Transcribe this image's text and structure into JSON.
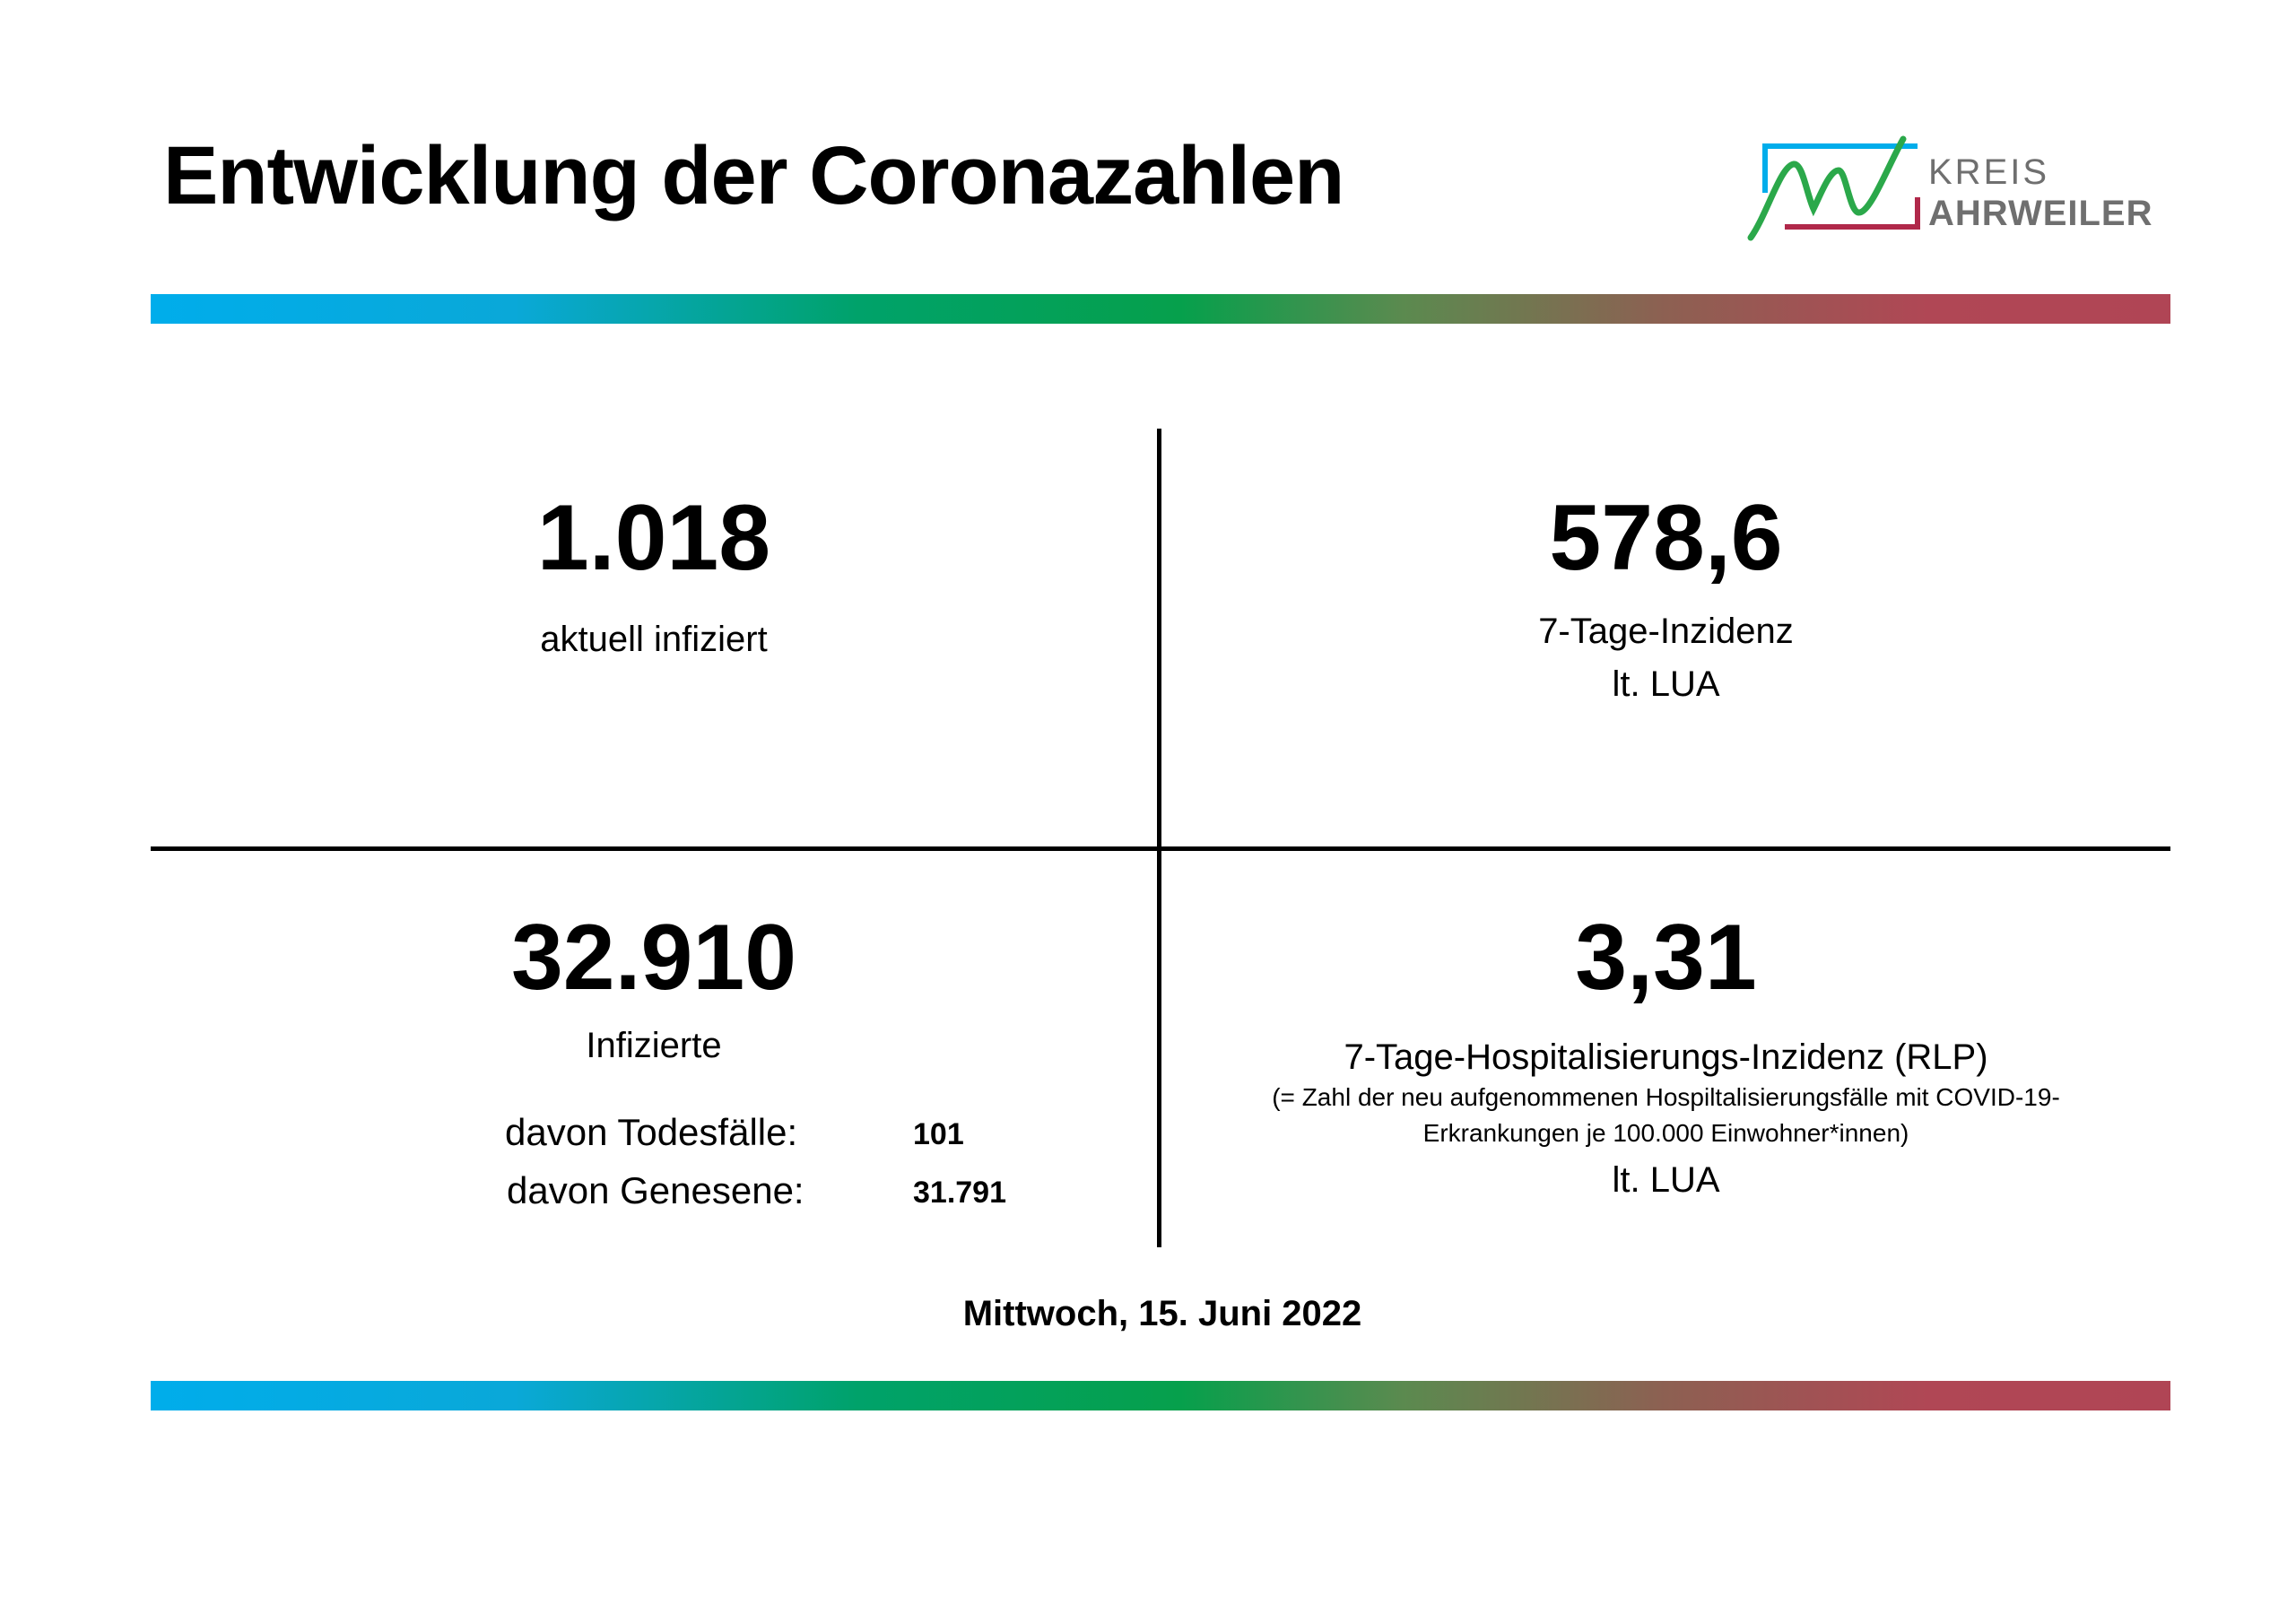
{
  "header": {
    "title": "Entwicklung der Coronazahlen",
    "logo": {
      "line1": "KREIS",
      "line2": "AHRWEILER",
      "colors": {
        "blue": "#00adeb",
        "green": "#2ba84a",
        "red": "#b0284a",
        "text": "#6f6f6f"
      }
    }
  },
  "colors": {
    "gradient": [
      "#00adeb",
      "#06a04c",
      "#b04555"
    ]
  },
  "current_infected": {
    "value": "1.018",
    "label": "aktuell infiziert"
  },
  "incidence": {
    "value": "578,6",
    "label": "7-Tage-Inzidenz",
    "source": "lt. LUA"
  },
  "total_infected": {
    "value": "32.910",
    "label": "Infizierte",
    "deaths_label": "davon Todesfälle:",
    "deaths_value": "101",
    "recovered_label": "davon Genesene:",
    "recovered_value": "31.791"
  },
  "hospitalization": {
    "value": "3,31",
    "label": "7-Tage-Hospitalisierungs-Inzidenz (RLP)",
    "note_line1": "(= Zahl der neu aufgenommenen Hospiltalisierungsfälle mit COVID-19-",
    "note_line2": "Erkrankungen je 100.000 Einwohner*innen)",
    "source": "lt. LUA"
  },
  "footer": {
    "date": "Mittwoch, 15. Juni 2022"
  }
}
